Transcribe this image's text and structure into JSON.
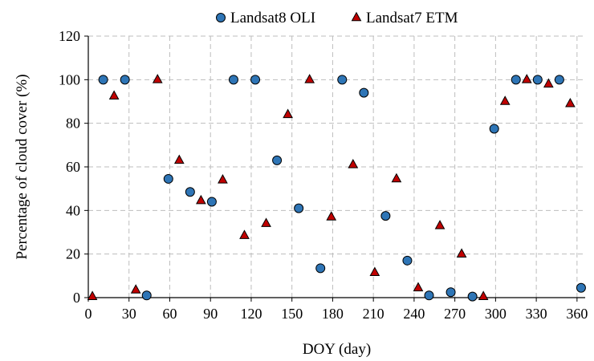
{
  "chart_data": {
    "type": "scatter",
    "xlabel": "DOY (day)",
    "ylabel": "Percentage  of cloud  cover  (%)",
    "xlim": [
      0,
      366
    ],
    "ylim": [
      0,
      120
    ],
    "xticks": [
      0,
      30,
      60,
      90,
      120,
      150,
      180,
      210,
      240,
      270,
      300,
      330,
      360
    ],
    "yticks": [
      0,
      20,
      40,
      60,
      80,
      100,
      120
    ],
    "grid": true,
    "legend_position": "top-center",
    "series": [
      {
        "name": "Landsat8 OLI",
        "marker": "circle",
        "color": "#2e75b6",
        "points": [
          {
            "x": 11,
            "y": 100
          },
          {
            "x": 27,
            "y": 100
          },
          {
            "x": 43,
            "y": 1
          },
          {
            "x": 59,
            "y": 54.5
          },
          {
            "x": 75,
            "y": 48.5
          },
          {
            "x": 91,
            "y": 44
          },
          {
            "x": 107,
            "y": 100
          },
          {
            "x": 123,
            "y": 100
          },
          {
            "x": 139,
            "y": 63
          },
          {
            "x": 155,
            "y": 41
          },
          {
            "x": 171,
            "y": 13.5
          },
          {
            "x": 187,
            "y": 100
          },
          {
            "x": 203,
            "y": 94
          },
          {
            "x": 219,
            "y": 37.5
          },
          {
            "x": 235,
            "y": 17
          },
          {
            "x": 251,
            "y": 1
          },
          {
            "x": 267,
            "y": 2.5
          },
          {
            "x": 283,
            "y": 0.5
          },
          {
            "x": 299,
            "y": 77.5
          },
          {
            "x": 315,
            "y": 100
          },
          {
            "x": 331,
            "y": 100
          },
          {
            "x": 347,
            "y": 100
          },
          {
            "x": 363,
            "y": 4.5
          }
        ]
      },
      {
        "name": "Landsat7 ETM",
        "marker": "triangle",
        "color": "#c00000",
        "points": [
          {
            "x": 3,
            "y": 0.5
          },
          {
            "x": 19,
            "y": 92.5
          },
          {
            "x": 35,
            "y": 3.5
          },
          {
            "x": 51,
            "y": 100
          },
          {
            "x": 67,
            "y": 63
          },
          {
            "x": 83,
            "y": 44.5
          },
          {
            "x": 99,
            "y": 54
          },
          {
            "x": 115,
            "y": 28.5
          },
          {
            "x": 131,
            "y": 34
          },
          {
            "x": 147,
            "y": 84
          },
          {
            "x": 163,
            "y": 100
          },
          {
            "x": 179,
            "y": 37
          },
          {
            "x": 195,
            "y": 61
          },
          {
            "x": 211,
            "y": 11.5
          },
          {
            "x": 227,
            "y": 54.5
          },
          {
            "x": 243,
            "y": 4.5
          },
          {
            "x": 259,
            "y": 33
          },
          {
            "x": 275,
            "y": 20
          },
          {
            "x": 291,
            "y": 0.5
          },
          {
            "x": 307,
            "y": 90
          },
          {
            "x": 323,
            "y": 100
          },
          {
            "x": 339,
            "y": 98
          },
          {
            "x": 355,
            "y": 89
          }
        ]
      }
    ]
  }
}
